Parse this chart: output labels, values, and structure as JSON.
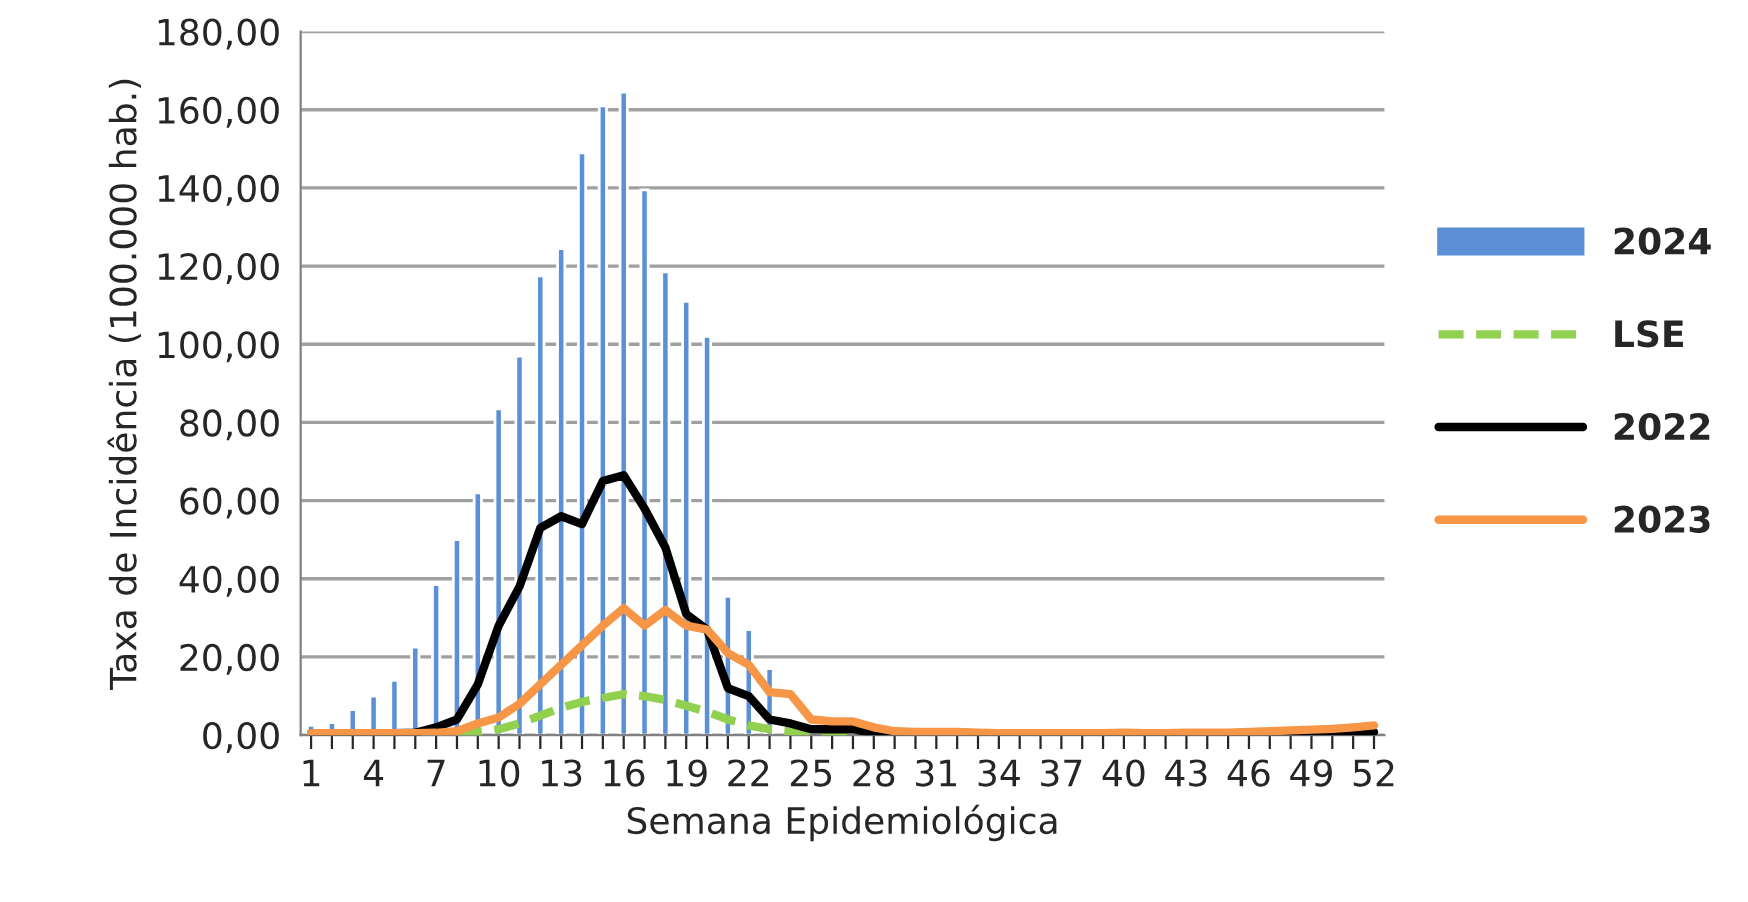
{
  "chart_data": {
    "type": "bar",
    "xlabel": "Semana Epidemiológica",
    "ylabel": "Taxa de Incidência (100.000 hab.)",
    "categories": [
      "1",
      null,
      null,
      "4",
      null,
      null,
      "7",
      null,
      null,
      "10",
      null,
      null,
      "13",
      null,
      null,
      "16",
      null,
      null,
      "19",
      null,
      null,
      "22",
      null,
      null,
      "25",
      null,
      null,
      "28",
      null,
      null,
      "31",
      null,
      null,
      "34",
      null,
      null,
      "37",
      null,
      null,
      "40",
      null,
      null,
      "43",
      null,
      null,
      "46",
      null,
      null,
      "49",
      null,
      null,
      "52"
    ],
    "series": [
      {
        "name": "2024",
        "color": "#5b8fd6",
        "values": [
          2.5,
          3.2,
          6.5,
          10,
          14,
          22.5,
          38.5,
          50,
          62,
          83.5,
          97,
          117.5,
          124.5,
          149,
          161,
          164.5,
          139.5,
          118.5,
          111,
          102,
          35.5,
          27,
          17,
          null,
          null,
          null,
          null,
          null,
          null,
          null,
          null,
          null,
          null,
          null,
          null,
          null,
          null,
          null,
          null,
          null,
          null,
          null,
          null,
          null,
          null,
          null,
          null,
          null,
          null,
          null,
          null,
          null
        ]
      },
      {
        "name": "LSE",
        "type": "line",
        "line_style": "dashed",
        "color": "#92d050",
        "values": [
          null,
          null,
          null,
          null,
          null,
          null,
          null,
          0.6,
          0.8,
          1.5,
          3,
          5,
          7,
          8.5,
          9.5,
          10.5,
          10,
          9,
          7.5,
          6,
          4,
          2.5,
          1.5,
          1,
          0.5,
          0.5,
          0.4,
          null,
          null,
          null,
          null,
          null,
          null,
          null,
          null,
          null,
          null,
          null,
          null,
          null,
          null,
          null,
          null,
          null,
          null,
          null,
          null,
          null,
          null,
          null,
          null,
          null
        ]
      },
      {
        "name": "2022",
        "type": "line",
        "line_style": "solid",
        "color": "#000000",
        "values": [
          0.5,
          0.5,
          0.5,
          0.5,
          0.5,
          0.6,
          2,
          4,
          13,
          28,
          38,
          53,
          56,
          54,
          65,
          66.5,
          58,
          48,
          31,
          27,
          12,
          10,
          4,
          3,
          1.5,
          1.5,
          1.5,
          0.5,
          0.3,
          0.3,
          0.3,
          0.3,
          0.3,
          0.3,
          0.3,
          0.3,
          0.3,
          0.3,
          0.3,
          0.3,
          0.3,
          0.3,
          0.3,
          0.3,
          0.3,
          0.3,
          0.3,
          0.3,
          0.3,
          0.4,
          0.6,
          0.8
        ]
      },
      {
        "name": "2023",
        "type": "line",
        "line_style": "solid",
        "color": "#f79646",
        "values": [
          0.5,
          0.5,
          0.5,
          0.5,
          0.5,
          0.5,
          0.6,
          1,
          3,
          4.5,
          8,
          13,
          18,
          23,
          28,
          32.5,
          28,
          32,
          28,
          27,
          21,
          18,
          11,
          10.5,
          4,
          3.5,
          3.5,
          2,
          1,
          0.8,
          0.8,
          0.8,
          0.6,
          0.5,
          0.5,
          0.5,
          0.5,
          0.5,
          0.5,
          0.6,
          0.5,
          0.5,
          0.6,
          0.6,
          0.6,
          0.8,
          1,
          1.2,
          1.4,
          1.6,
          2,
          2.5
        ]
      }
    ],
    "ylim": [
      0,
      180
    ],
    "yticks": [
      {
        "value": 0,
        "label": "0,00"
      },
      {
        "value": 20,
        "label": "20,00"
      },
      {
        "value": 40,
        "label": "40,00"
      },
      {
        "value": 60,
        "label": "60,00"
      },
      {
        "value": 80,
        "label": "80,00"
      },
      {
        "value": 100,
        "label": "100,00"
      },
      {
        "value": 120,
        "label": "120,00"
      },
      {
        "value": 140,
        "label": "140,00"
      },
      {
        "value": 160,
        "label": "160,00"
      },
      {
        "value": 180,
        "label": "180,00"
      }
    ],
    "grid": "y",
    "legend": "right"
  }
}
